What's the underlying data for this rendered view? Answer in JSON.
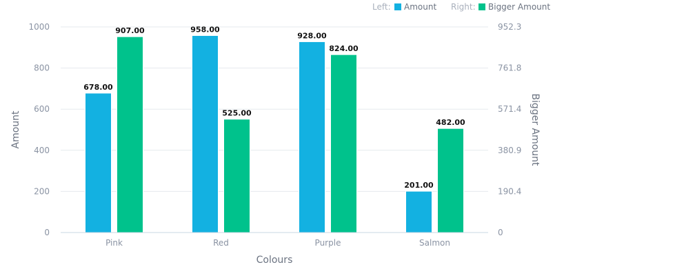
{
  "chart_data": {
    "type": "bar",
    "categories": [
      "Pink",
      "Red",
      "Purple",
      "Salmon"
    ],
    "series": [
      {
        "name": "Amount",
        "axis": "left",
        "color": "#13b1e1",
        "values": [
          678,
          958,
          928,
          201
        ],
        "labels": [
          "678.00",
          "958.00",
          "928.00",
          "201.00"
        ]
      },
      {
        "name": "Bigger Amount",
        "axis": "right",
        "color": "#00c28c",
        "values": [
          907,
          525,
          824,
          482
        ],
        "labels": [
          "907.00",
          "525.00",
          "824.00",
          "482.00"
        ]
      }
    ],
    "xlabel": "Colours",
    "ylabel": "Amount",
    "y2label": "Bigger Amount",
    "ylim": [
      0,
      1000
    ],
    "y2lim": [
      0,
      952.3
    ],
    "yticks": [
      "0",
      "200",
      "400",
      "600",
      "800",
      "1000"
    ],
    "y2ticks": [
      "0",
      "190.4",
      "380.9",
      "571.4",
      "761.8",
      "952.3"
    ],
    "legend": {
      "left_prefix": "Left:",
      "right_prefix": "Right:",
      "placement": "top-right"
    },
    "grid": true
  }
}
